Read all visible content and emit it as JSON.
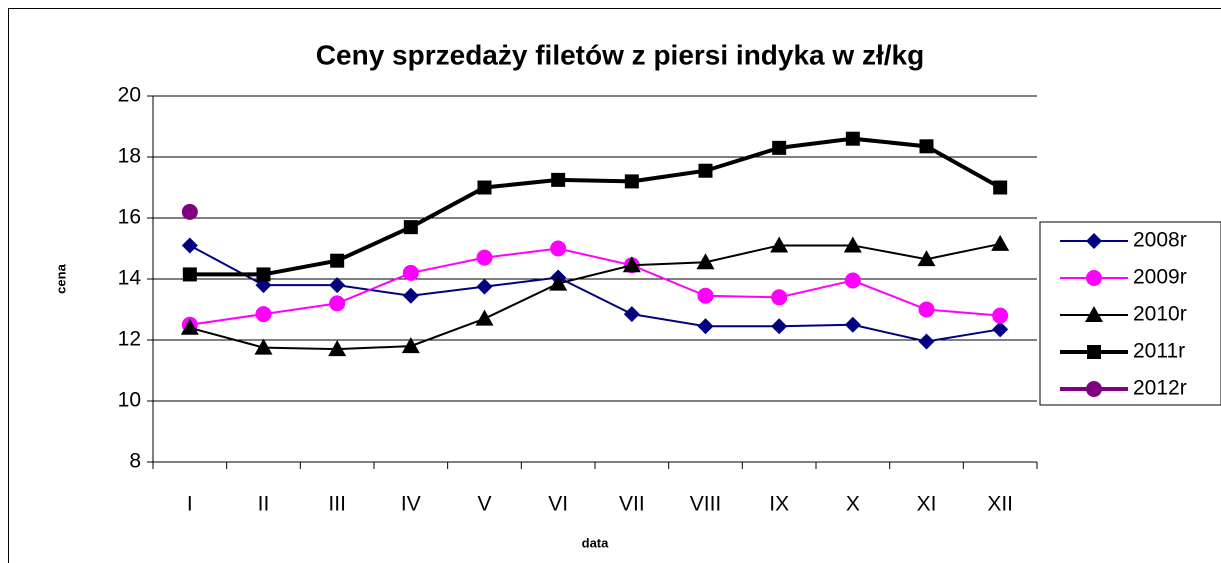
{
  "chart_data": {
    "type": "line",
    "title": "Ceny sprzedaży filetów z  piersi indyka w zł/kg",
    "x_label": "data",
    "y_label": "cena",
    "categories": [
      "I",
      "II",
      "III",
      "IV",
      "V",
      "VI",
      "VII",
      "VIII",
      "IX",
      "X",
      "XI",
      "XII"
    ],
    "ylim": [
      8,
      20
    ],
    "yticks": [
      8,
      10,
      12,
      14,
      16,
      18,
      20
    ],
    "grid": true,
    "legend": "right",
    "series": [
      {
        "name": "2008r",
        "color": "#000080",
        "marker": "diamond",
        "width": 2,
        "values": [
          15.1,
          13.8,
          13.8,
          13.45,
          13.75,
          14.05,
          12.85,
          12.45,
          12.45,
          12.5,
          11.95,
          12.35
        ]
      },
      {
        "name": "2009r",
        "color": "#ff00ff",
        "marker": "circle",
        "width": 2,
        "values": [
          12.5,
          12.85,
          13.2,
          14.2,
          14.7,
          15.0,
          14.45,
          13.45,
          13.4,
          13.95,
          13.0,
          12.8
        ]
      },
      {
        "name": "2010r",
        "color": "#000000",
        "marker": "triangle",
        "width": 2,
        "values": [
          12.4,
          11.75,
          11.7,
          11.8,
          12.7,
          13.85,
          14.45,
          14.55,
          15.1,
          15.1,
          14.65,
          15.15
        ]
      },
      {
        "name": "2011r",
        "color": "#000000",
        "marker": "square",
        "width": 4,
        "values": [
          14.15,
          14.15,
          14.6,
          15.7,
          17.0,
          17.25,
          17.2,
          17.55,
          18.3,
          18.6,
          18.35,
          17.0
        ]
      },
      {
        "name": "2012r",
        "color": "#800080",
        "marker": "circle",
        "width": 4,
        "values": [
          16.2,
          null,
          null,
          null,
          null,
          null,
          null,
          null,
          null,
          null,
          null,
          null
        ]
      }
    ]
  }
}
